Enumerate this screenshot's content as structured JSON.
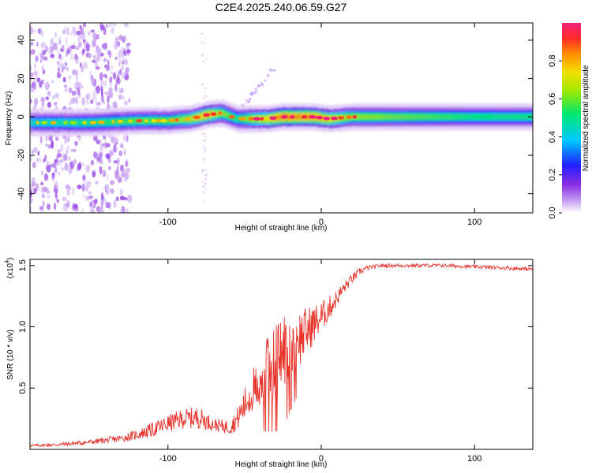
{
  "title": "C2E4.2025.240.06.59.G27",
  "colors": {
    "snr_line": "#e8322a",
    "colormap": [
      "#ffffff",
      "#c9a6f2",
      "#8a2be2",
      "#2020ff",
      "#00c8ff",
      "#00e870",
      "#9ee800",
      "#f2e000",
      "#ff8a00",
      "#ff2a2a",
      "#f0207a"
    ]
  },
  "chart_data": [
    {
      "type": "heatmap",
      "title": "C2E4.2025.240.06.59.G27",
      "xlabel": "Height of straight line (km)",
      "ylabel": "Frequency (Hz)",
      "xlim": [
        -190,
        138
      ],
      "ylim": [
        -50,
        49
      ],
      "xticks": [
        -100,
        0,
        100
      ],
      "xtick_labels": [
        "-100",
        "0",
        "100"
      ],
      "yticks": [
        -40,
        -20,
        0,
        20,
        40
      ],
      "ytick_labels": [
        "-40",
        "-20",
        "0",
        "20",
        "40"
      ],
      "colorbar": {
        "label": "Normalized spectral amplitude",
        "range": [
          0,
          1
        ],
        "ticks": [
          0.0,
          0.2,
          0.4,
          0.6,
          0.8
        ],
        "tick_labels": [
          "0.0",
          "0.2",
          "0.4",
          "0.6",
          "0.8"
        ]
      },
      "ridge": {
        "description_points_x": [
          -190,
          -150,
          -120,
          -100,
          -85,
          -75,
          -65,
          -55,
          -45,
          -35,
          -25,
          -15,
          -5,
          5,
          20,
          60,
          100,
          138
        ],
        "center_freq": [
          -3,
          -3,
          -2,
          -2,
          -1,
          1,
          2,
          -1,
          -1,
          -1,
          0,
          0,
          0,
          -1,
          0,
          0,
          0,
          0
        ],
        "amplitude": [
          0.45,
          0.5,
          0.55,
          0.55,
          0.65,
          0.75,
          0.6,
          0.5,
          0.65,
          0.7,
          0.85,
          0.8,
          0.8,
          0.7,
          0.6,
          0.55,
          0.5,
          0.5
        ]
      },
      "scatter_region": {
        "x": [
          -190,
          -125
        ],
        "y": [
          -50,
          49
        ]
      }
    },
    {
      "type": "line",
      "xlabel": "Height of straight line (km)",
      "ylabel": "SNR (10 * v/v)",
      "y_multiplier_label": "(x10",
      "y_multiplier_exp": "4",
      "y_multiplier_close": ")",
      "xlim": [
        -190,
        138
      ],
      "ylim": [
        0,
        15500
      ],
      "xticks": [
        -100,
        0,
        100
      ],
      "xtick_labels": [
        "-100",
        "0",
        "100"
      ],
      "yticks": [
        5000,
        10000,
        15000
      ],
      "ytick_labels": [
        "0.5",
        "1.0",
        "1.5"
      ],
      "series": [
        {
          "x": [
            -190,
            -170,
            -150,
            -130,
            -120,
            -110,
            -100,
            -90,
            -80,
            -70,
            -60,
            -55,
            -50,
            -45,
            -40,
            -35,
            -30,
            -25,
            -20,
            -15,
            -10,
            -5,
            0,
            5,
            10,
            15,
            20,
            25,
            30,
            40,
            50,
            60,
            80,
            100,
            120,
            138
          ],
          "y": [
            300,
            400,
            600,
            900,
            1200,
            1600,
            2100,
            2500,
            2600,
            2000,
            1800,
            2400,
            3600,
            4800,
            5500,
            6500,
            7200,
            8000,
            8600,
            9000,
            9600,
            10200,
            10800,
            11500,
            12300,
            13200,
            13900,
            14500,
            14800,
            15000,
            15000,
            15000,
            15000,
            14900,
            14800,
            14700
          ],
          "noise": [
            100,
            150,
            200,
            300,
            400,
            600,
            700,
            800,
            900,
            500,
            600,
            900,
            1400,
            1800,
            2200,
            2800,
            3200,
            3500,
            3000,
            2500,
            2000,
            1600,
            1300,
            1000,
            700,
            500,
            400,
            300,
            200,
            150,
            150,
            150,
            150,
            150,
            150,
            150
          ]
        }
      ]
    }
  ]
}
